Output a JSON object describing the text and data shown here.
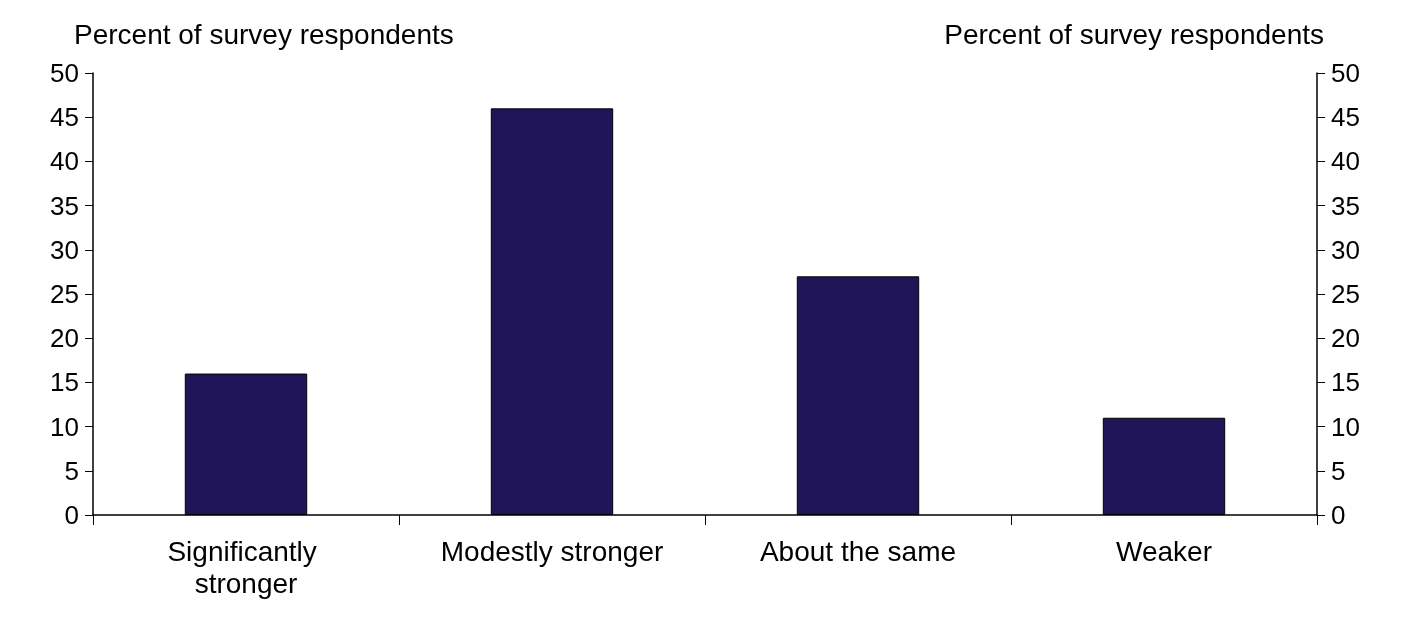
{
  "chart_data": {
    "type": "bar",
    "ylabel": "Percent of survey respondents",
    "y2label": "Percent of survey respondents",
    "categories": [
      "Significantly stronger",
      "Modestly stronger",
      "About the same",
      "Weaker"
    ],
    "values": [
      16,
      46,
      27,
      11
    ],
    "color": "#201558",
    "ylim": [
      0,
      50
    ],
    "yticks": [
      0,
      5,
      10,
      15,
      20,
      25,
      30,
      35,
      40,
      45,
      50
    ],
    "y2lim": [
      0,
      50
    ],
    "y2ticks": [
      0,
      5,
      10,
      15,
      20,
      25,
      30,
      35,
      40,
      45,
      50
    ],
    "grid": false
  }
}
